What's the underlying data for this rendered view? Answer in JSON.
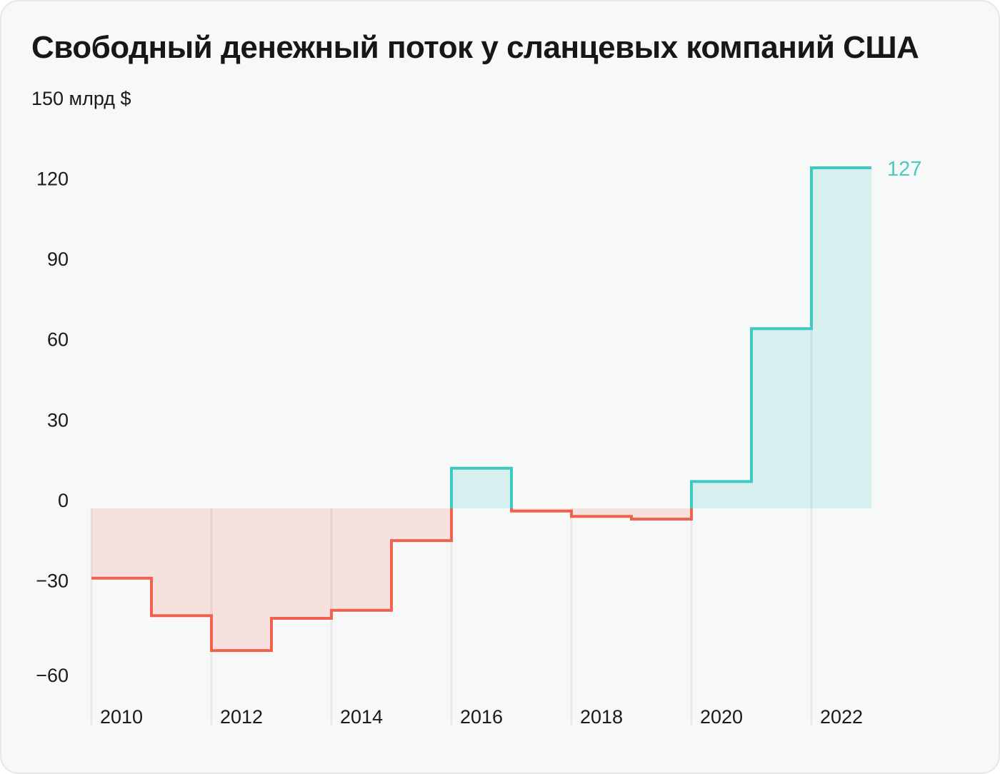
{
  "chart_data": {
    "type": "area",
    "variant": "step-area-yearly",
    "title": "Свободный денежный поток у сланцевых компаний США",
    "unit_label": "150 млрд $",
    "ylabel": "млрд $",
    "xlabel": "",
    "x": [
      2010,
      2011,
      2012,
      2013,
      2014,
      2015,
      2016,
      2017,
      2018,
      2019,
      2020,
      2021,
      2022
    ],
    "values": [
      -26,
      -40,
      -53,
      -41,
      -38,
      -12,
      15,
      -1,
      -3,
      -4,
      10,
      67,
      127
    ],
    "ylim": [
      -62,
      150
    ],
    "xlim": [
      2010,
      2023
    ],
    "grid": "vertical-only",
    "legend": "none",
    "y_ticks": [
      {
        "value": 120,
        "label": "120"
      },
      {
        "value": 90,
        "label": "90"
      },
      {
        "value": 60,
        "label": "60"
      },
      {
        "value": 30,
        "label": "30"
      },
      {
        "value": 0,
        "label": "0"
      },
      {
        "value": -30,
        "label": "−30"
      },
      {
        "value": -60,
        "label": "−60"
      }
    ],
    "x_ticks": [
      {
        "value": 2010,
        "label": "2010"
      },
      {
        "value": 2012,
        "label": "2012"
      },
      {
        "value": 2014,
        "label": "2014"
      },
      {
        "value": 2016,
        "label": "2016"
      },
      {
        "value": 2018,
        "label": "2018"
      },
      {
        "value": 2020,
        "label": "2020"
      },
      {
        "value": 2022,
        "label": "2022"
      }
    ],
    "annotation": {
      "x": 2022,
      "value": 127,
      "label": "127"
    },
    "colors": {
      "positive_line": "#3EC9C2",
      "positive_fill": "rgba(62, 201, 194, 0.17)",
      "negative_line": "#F0614E",
      "negative_fill": "rgba(240, 97, 78, 0.15)",
      "annotation_text": "#4FC7C2",
      "axis_text": "#1A1A1C",
      "gridline": "#E8E9E9",
      "background": "#F7F8F8"
    }
  }
}
